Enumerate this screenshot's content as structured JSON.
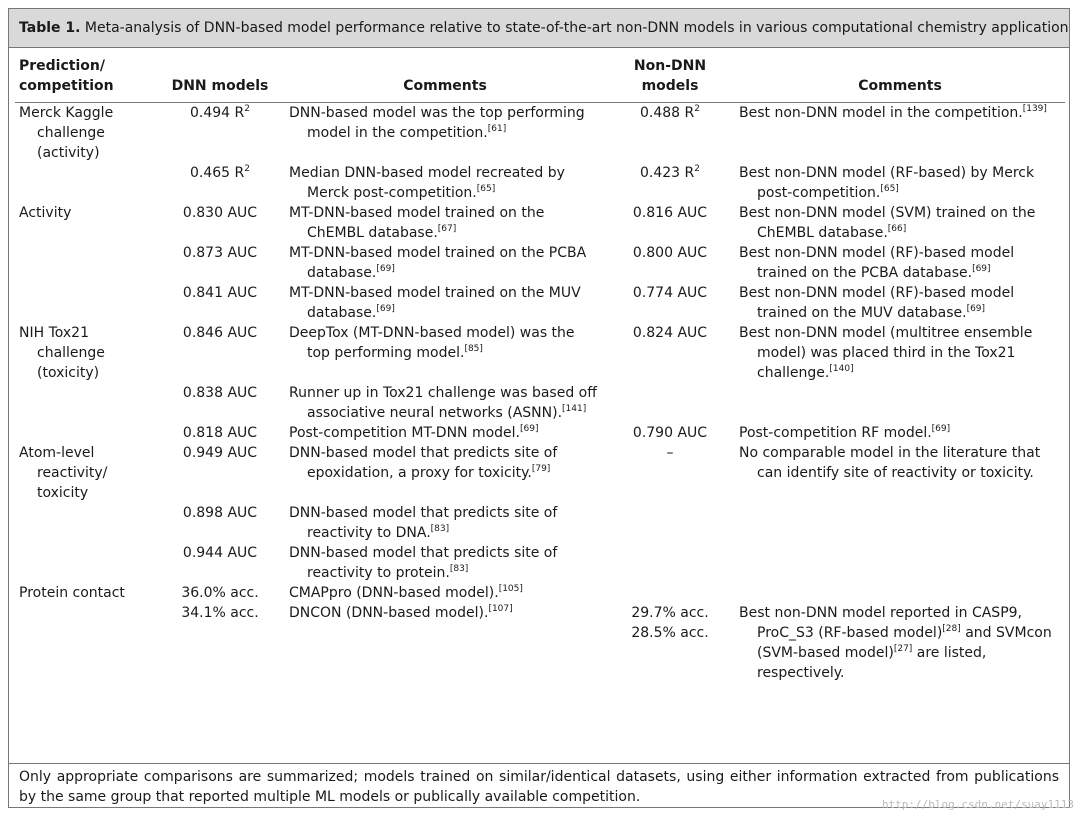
{
  "caption": {
    "label": "Table 1.",
    "text": "Meta-analysis of DNN-based model performance relative to state-of-the-art non-DNN models in various computational chemistry applications."
  },
  "table": {
    "headers": [
      "Prediction/\ncompetition",
      "DNN models",
      "Comments",
      "Non-DNN\nmodels",
      "Comments"
    ],
    "rows": [
      [
        "Merck Kaggle challenge (activity)",
        [
          "0.494 R",
          {
            "sup": "2"
          }
        ],
        [
          "DNN-based model was the top performing model in the competition.",
          {
            "sup": "[61]"
          }
        ],
        [
          "0.488 R",
          {
            "sup": "2"
          }
        ],
        [
          "Best non-DNN model in the competition.",
          {
            "sup": "[139]"
          }
        ]
      ],
      [
        null,
        [
          "0.465 R",
          {
            "sup": "2"
          }
        ],
        [
          "Median DNN-based model recreated by Merck post-competition.",
          {
            "sup": "[65]"
          }
        ],
        [
          "0.423 R",
          {
            "sup": "2"
          }
        ],
        [
          "Best non-DNN model (RF-based) by Merck post-competition.",
          {
            "sup": "[65]"
          }
        ]
      ],
      [
        "Activity",
        [
          "0.830 AUC"
        ],
        [
          "MT-DNN-based model trained on the ChEMBL database.",
          {
            "sup": "[67]"
          }
        ],
        [
          "0.816 AUC"
        ],
        [
          "Best non-DNN model (SVM) trained on the ChEMBL database.",
          {
            "sup": "[66]"
          }
        ]
      ],
      [
        null,
        [
          "0.873 AUC"
        ],
        [
          "MT-DNN-based model trained on the PCBA database.",
          {
            "sup": "[69]"
          }
        ],
        [
          "0.800 AUC"
        ],
        [
          "Best non-DNN model (RF)-based model trained on the PCBA database.",
          {
            "sup": "[69]"
          }
        ]
      ],
      [
        null,
        [
          "0.841 AUC"
        ],
        [
          "MT-DNN-based model trained on the MUV database.",
          {
            "sup": "[69]"
          }
        ],
        [
          "0.774 AUC"
        ],
        [
          "Best non-DNN model (RF)-based model trained on the MUV database.",
          {
            "sup": "[69]"
          }
        ]
      ],
      [
        "NIH Tox21 challenge (toxicity)",
        [
          "0.846 AUC"
        ],
        [
          "DeepTox (MT-DNN-based model) was the top performing model.",
          {
            "sup": "[85]"
          }
        ],
        [
          "0.824 AUC"
        ],
        [
          "Best non-DNN model (multitree ensemble model) was placed third in the Tox21 challenge.",
          {
            "sup": "[140]"
          }
        ]
      ],
      [
        null,
        [
          "0.838 AUC"
        ],
        [
          "Runner up in Tox21 challenge was based off associative neural networks (ASNN).",
          {
            "sup": "[141]"
          }
        ],
        null,
        null
      ],
      [
        null,
        [
          "0.818 AUC"
        ],
        [
          "Post-competition MT-DNN model.",
          {
            "sup": "[69]"
          }
        ],
        [
          "0.790 AUC"
        ],
        [
          "Post-competition RF model.",
          {
            "sup": "[69]"
          }
        ]
      ],
      [
        "Atom-level reactivity/ toxicity",
        [
          "0.949 AUC"
        ],
        [
          "DNN-based model that predicts site of epoxidation, a proxy for toxicity.",
          {
            "sup": "[79]"
          }
        ],
        [
          "–"
        ],
        [
          "No comparable model in the literature that can identify site of reactivity or toxicity."
        ]
      ],
      [
        null,
        [
          "0.898 AUC"
        ],
        [
          "DNN-based model that predicts site of reactivity to DNA.",
          {
            "sup": "[83]"
          }
        ],
        null,
        null
      ],
      [
        null,
        [
          "0.944 AUC"
        ],
        [
          "DNN-based model that predicts site of reactivity to protein.",
          {
            "sup": "[83]"
          }
        ],
        null,
        null
      ],
      [
        "Protein contact",
        [
          "36.0% acc."
        ],
        [
          "CMAPpro (DNN-based model).",
          {
            "sup": "[105]"
          }
        ],
        null,
        null
      ],
      [
        null,
        [
          "34.1% acc."
        ],
        [
          "DNCON (DNN-based model).",
          {
            "sup": "[107]"
          }
        ],
        [
          "29.7% acc.\n28.5% acc."
        ],
        [
          "Best non-DNN model reported in CASP9, ProC_S3 (RF-based model)",
          {
            "sup": "[28]"
          },
          " and SVMcon (SVM-based model)",
          {
            "sup": "[27]"
          },
          " are listed, respectively."
        ]
      ]
    ]
  },
  "footnote": "Only appropriate comparisons are summarized; models trained on similar/identical datasets, using either information extracted from publications by the same group that reported multiple ML models or publically available competition.",
  "watermark": "http://blog.csdn.net/suay1113"
}
